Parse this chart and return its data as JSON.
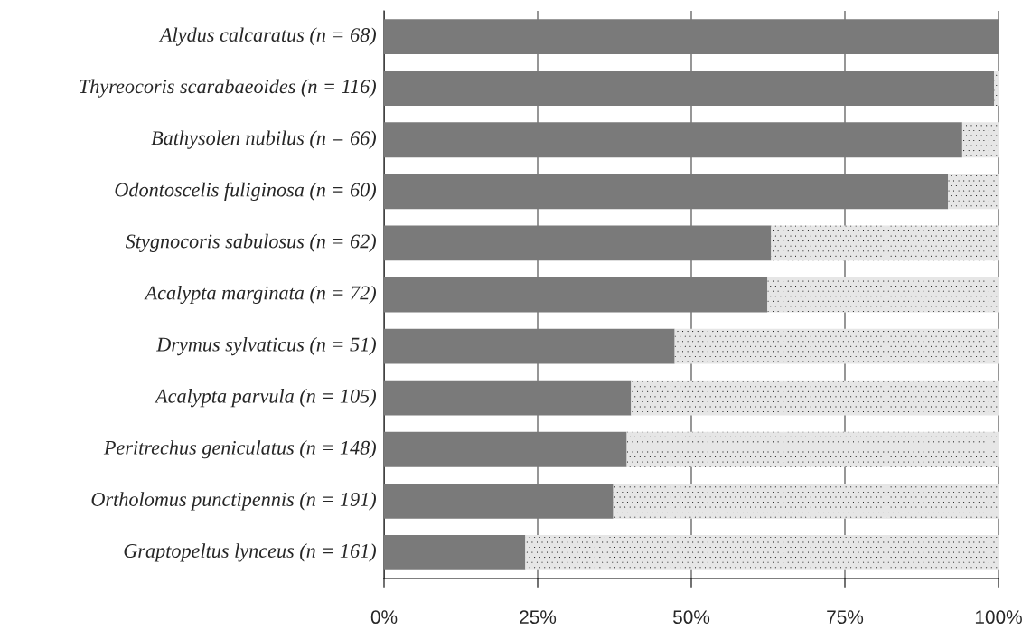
{
  "chart_data": {
    "type": "bar",
    "orientation": "horizontal",
    "stacked": true,
    "categories": [
      "Alydus calcaratus (n = 68)",
      "Thyreocoris scarabaeoides (n = 116)",
      "Bathysolen nubilus (n = 66)",
      "Odontoscelis fuliginosa (n = 60)",
      "Stygnocoris sabulosus (n = 62)",
      "Acalypta marginata (n = 72)",
      "Drymus sylvaticus (n = 51)",
      "Acalypta parvula (n = 105)",
      "Peritrechus geniculatus (n = 148)",
      "Ortholomus punctipennis (n = 191)",
      "Graptopeltus lynceus (n = 161)"
    ],
    "series": [
      {
        "color": "#7a7a7a",
        "values": [
          100,
          99.3,
          94.1,
          91.8,
          63.0,
          62.4,
          47.3,
          40.2,
          39.5,
          37.3,
          23.0
        ]
      },
      {
        "color": "#e6e6e6",
        "values": [
          0,
          0.7,
          5.9,
          8.2,
          37.0,
          37.6,
          52.7,
          59.8,
          60.5,
          62.7,
          77.0
        ]
      }
    ],
    "xlim": [
      0,
      100
    ],
    "xticks": [
      {
        "value": 0,
        "label": "0%"
      },
      {
        "value": 25,
        "label": "25%"
      },
      {
        "value": 50,
        "label": "50%"
      },
      {
        "value": 75,
        "label": "75%"
      },
      {
        "value": 100,
        "label": "100%"
      }
    ],
    "grid": "x",
    "legend": false
  }
}
